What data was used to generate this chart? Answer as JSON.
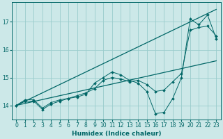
{
  "title": "",
  "xlabel": "Humidex (Indice chaleur)",
  "ylabel": "",
  "bg_color": "#cce8e8",
  "line_color": "#006666",
  "grid_color": "#99cccc",
  "xlim": [
    -0.5,
    23.5
  ],
  "ylim": [
    13.5,
    17.7
  ],
  "xticks": [
    0,
    1,
    2,
    3,
    4,
    5,
    6,
    7,
    8,
    9,
    10,
    11,
    12,
    13,
    14,
    15,
    16,
    17,
    18,
    19,
    20,
    21,
    22,
    23
  ],
  "yticks": [
    14,
    15,
    16,
    17
  ],
  "trend1_x": [
    0,
    23
  ],
  "trend1_y": [
    14.0,
    17.45
  ],
  "trend2_x": [
    0,
    23
  ],
  "trend2_y": [
    14.0,
    15.6
  ],
  "line_a_x": [
    0,
    1,
    2,
    3,
    4,
    5,
    6,
    7,
    8,
    9,
    10,
    11,
    12,
    13,
    14,
    15,
    16,
    17,
    18,
    19,
    20,
    21,
    22,
    23
  ],
  "line_a_y": [
    14.0,
    14.2,
    14.2,
    13.9,
    14.1,
    14.2,
    14.25,
    14.3,
    14.4,
    14.8,
    15.0,
    15.2,
    15.1,
    14.9,
    14.8,
    14.5,
    13.7,
    13.75,
    14.25,
    15.0,
    17.1,
    16.9,
    17.25,
    16.4
  ],
  "line_b_x": [
    0,
    1,
    2,
    3,
    4,
    5,
    6,
    7,
    8,
    9,
    10,
    11,
    12,
    13,
    14,
    15,
    16,
    17,
    18,
    19,
    20,
    21,
    22,
    23
  ],
  "line_b_y": [
    14.0,
    14.15,
    14.15,
    13.85,
    14.05,
    14.15,
    14.25,
    14.35,
    14.45,
    14.6,
    14.9,
    15.0,
    14.95,
    14.85,
    14.9,
    14.75,
    14.5,
    14.55,
    14.85,
    15.15,
    16.7,
    16.8,
    16.85,
    16.5
  ]
}
